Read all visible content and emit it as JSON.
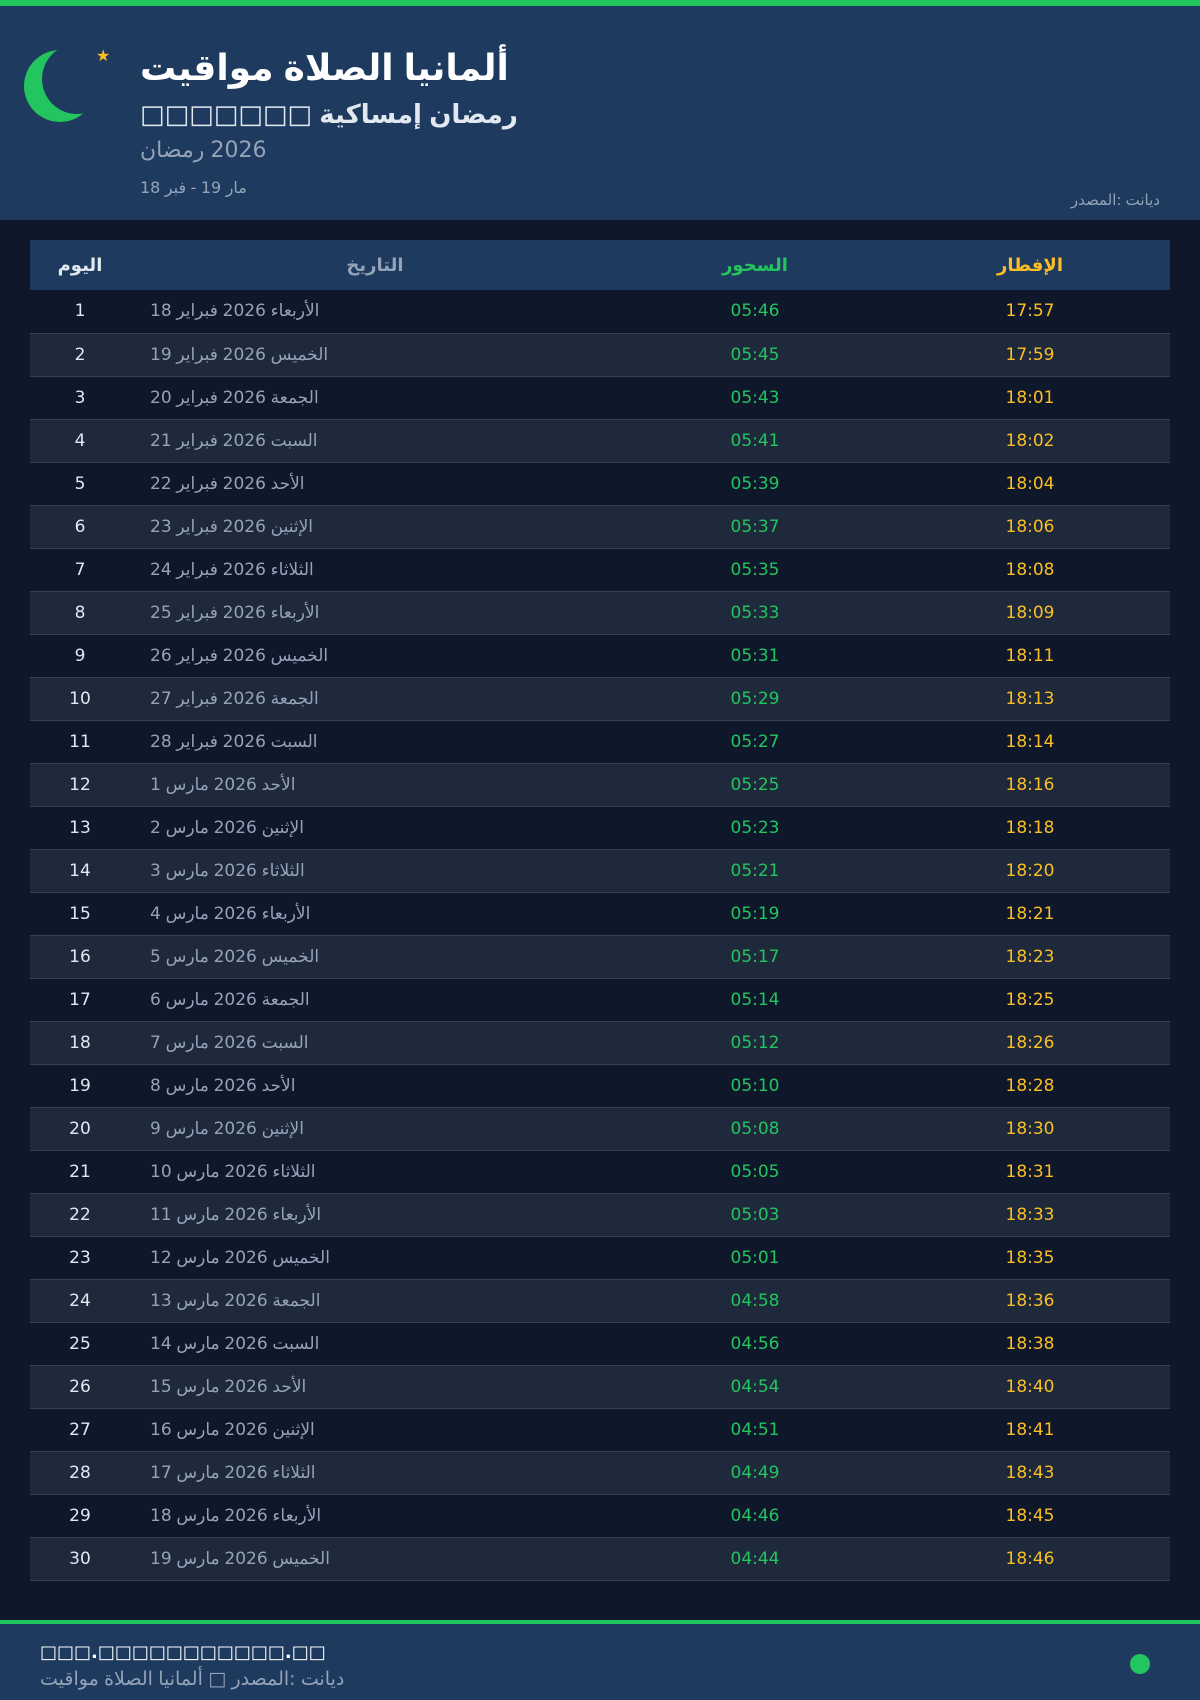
{
  "header": {
    "title": "مواقيت الصلاة ألمانيا",
    "subtitle": "□□□□□□□ إمساكية رمضان",
    "year": "رمضان 2026",
    "range": "18 فبر - 19 مار",
    "source": "المصدر: ديانت"
  },
  "colors": {
    "accent": "#22c55e",
    "iftar": "#fbbf24",
    "background": "#0f172a",
    "panel": "#1e3a5f"
  },
  "icons": {
    "logo": "crescent-moon-icon",
    "star": "star-icon"
  },
  "table": {
    "headers": {
      "day": "اليوم",
      "date": "التاريخ",
      "suhoor": "السحور",
      "iftar": "الإفطار"
    },
    "rows": [
      [
        "1",
        "18 فبراير 2026 الأربعاء",
        "05:46",
        "17:57"
      ],
      [
        "2",
        "19 فبراير 2026 الخميس",
        "05:45",
        "17:59"
      ],
      [
        "3",
        "20 فبراير 2026 الجمعة",
        "05:43",
        "18:01"
      ],
      [
        "4",
        "21 فبراير 2026 السبت",
        "05:41",
        "18:02"
      ],
      [
        "5",
        "22 فبراير 2026 الأحد",
        "05:39",
        "18:04"
      ],
      [
        "6",
        "23 فبراير 2026 الإثنين",
        "05:37",
        "18:06"
      ],
      [
        "7",
        "24 فبراير 2026 الثلاثاء",
        "05:35",
        "18:08"
      ],
      [
        "8",
        "25 فبراير 2026 الأربعاء",
        "05:33",
        "18:09"
      ],
      [
        "9",
        "26 فبراير 2026 الخميس",
        "05:31",
        "18:11"
      ],
      [
        "10",
        "27 فبراير 2026 الجمعة",
        "05:29",
        "18:13"
      ],
      [
        "11",
        "28 فبراير 2026 السبت",
        "05:27",
        "18:14"
      ],
      [
        "12",
        "1 مارس 2026 الأحد",
        "05:25",
        "18:16"
      ],
      [
        "13",
        "2 مارس 2026 الإثنين",
        "05:23",
        "18:18"
      ],
      [
        "14",
        "3 مارس 2026 الثلاثاء",
        "05:21",
        "18:20"
      ],
      [
        "15",
        "4 مارس 2026 الأربعاء",
        "05:19",
        "18:21"
      ],
      [
        "16",
        "5 مارس 2026 الخميس",
        "05:17",
        "18:23"
      ],
      [
        "17",
        "6 مارس 2026 الجمعة",
        "05:14",
        "18:25"
      ],
      [
        "18",
        "7 مارس 2026 السبت",
        "05:12",
        "18:26"
      ],
      [
        "19",
        "8 مارس 2026 الأحد",
        "05:10",
        "18:28"
      ],
      [
        "20",
        "9 مارس 2026 الإثنين",
        "05:08",
        "18:30"
      ],
      [
        "21",
        "10 مارس 2026 الثلاثاء",
        "05:05",
        "18:31"
      ],
      [
        "22",
        "11 مارس 2026 الأربعاء",
        "05:03",
        "18:33"
      ],
      [
        "23",
        "12 مارس 2026 الخميس",
        "05:01",
        "18:35"
      ],
      [
        "24",
        "13 مارس 2026 الجمعة",
        "04:58",
        "18:36"
      ],
      [
        "25",
        "14 مارس 2026 السبت",
        "04:56",
        "18:38"
      ],
      [
        "26",
        "15 مارس 2026 الأحد",
        "04:54",
        "18:40"
      ],
      [
        "27",
        "16 مارس 2026 الإثنين",
        "04:51",
        "18:41"
      ],
      [
        "28",
        "17 مارس 2026 الثلاثاء",
        "04:49",
        "18:43"
      ],
      [
        "29",
        "18 مارس 2026 الأربعاء",
        "04:46",
        "18:45"
      ],
      [
        "30",
        "19 مارس 2026 الخميس",
        "04:44",
        "18:46"
      ]
    ]
  },
  "footer": {
    "website": "□□□.□□□□□□□□□□□.□□",
    "caption": "مواقيت الصلاة ألمانيا □ المصدر: ديانت"
  }
}
